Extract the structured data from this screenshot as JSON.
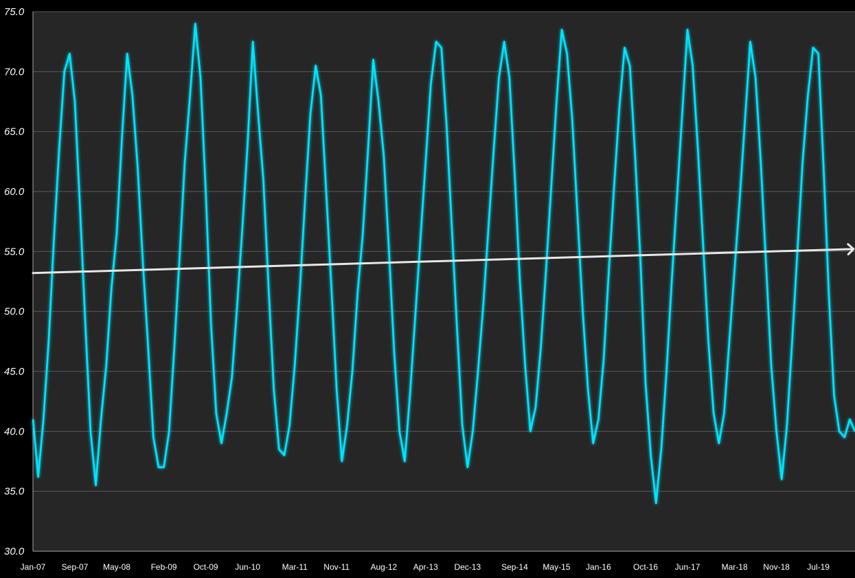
{
  "colors": {
    "background": "#000000",
    "plot_area": "#262626",
    "grid": "#595959",
    "axis": "#a6a6a6",
    "series": "#00e5ff",
    "trend": "#e8e8e8",
    "text": "#ffffff"
  },
  "chart_data": {
    "type": "line",
    "title": "",
    "xlabel": "",
    "ylabel": "",
    "ylim": [
      30,
      75
    ],
    "y_tick_labels": [
      "30.0",
      "35.0",
      "40.0",
      "45.0",
      "50.0",
      "55.0",
      "60.0",
      "65.0",
      "70.0",
      "75.0"
    ],
    "x_start": "2007-01",
    "x_end": "2020-02",
    "x_tick_labels": [
      {
        "date": "2007-01",
        "label": "Jan-07"
      },
      {
        "date": "2007-09",
        "label": "Sep-07"
      },
      {
        "date": "2008-05",
        "label": "May-08"
      },
      {
        "date": "2009-02",
        "label": "Feb-09"
      },
      {
        "date": "2009-10",
        "label": "Oct-09"
      },
      {
        "date": "2010-06",
        "label": "Jun-10"
      },
      {
        "date": "2011-03",
        "label": "Mar-11"
      },
      {
        "date": "2011-11",
        "label": "Nov-11"
      },
      {
        "date": "2012-08",
        "label": "Aug-12"
      },
      {
        "date": "2013-04",
        "label": "Apr-13"
      },
      {
        "date": "2013-12",
        "label": "Dec-13"
      },
      {
        "date": "2014-09",
        "label": "Sep-14"
      },
      {
        "date": "2015-05",
        "label": "May-15"
      },
      {
        "date": "2016-01",
        "label": "Jan-16"
      },
      {
        "date": "2016-10",
        "label": "Oct-16"
      },
      {
        "date": "2017-06",
        "label": "Jun-17"
      },
      {
        "date": "2018-03",
        "label": "Mar-18"
      },
      {
        "date": "2018-11",
        "label": "Nov-18"
      },
      {
        "date": "2019-07",
        "label": "Jul-19"
      }
    ],
    "grid": true,
    "legend": "none",
    "series": [
      {
        "points": [
          [
            "2007-01",
            41.0
          ],
          [
            "2007-02",
            36.2
          ],
          [
            "2007-03",
            41.0
          ],
          [
            "2007-04",
            47.5
          ],
          [
            "2007-05",
            56.0
          ],
          [
            "2007-06",
            63.5
          ],
          [
            "2007-07",
            70.0
          ],
          [
            "2007-08",
            71.5
          ],
          [
            "2007-09",
            67.5
          ],
          [
            "2007-10",
            58.5
          ],
          [
            "2007-11",
            49.0
          ],
          [
            "2007-12",
            40.0
          ],
          [
            "2008-01",
            35.5
          ],
          [
            "2008-02",
            41.0
          ],
          [
            "2008-03",
            45.5
          ],
          [
            "2008-04",
            52.0
          ],
          [
            "2008-05",
            56.5
          ],
          [
            "2008-06",
            64.5
          ],
          [
            "2008-07",
            71.5
          ],
          [
            "2008-08",
            68.0
          ],
          [
            "2008-09",
            62.0
          ],
          [
            "2008-10",
            54.0
          ],
          [
            "2008-11",
            47.0
          ],
          [
            "2008-12",
            39.5
          ],
          [
            "2009-01",
            37.0
          ],
          [
            "2009-02",
            37.0
          ],
          [
            "2009-03",
            40.0
          ],
          [
            "2009-04",
            47.0
          ],
          [
            "2009-05",
            54.5
          ],
          [
            "2009-06",
            62.5
          ],
          [
            "2009-07",
            68.0
          ],
          [
            "2009-08",
            74.0
          ],
          [
            "2009-09",
            69.5
          ],
          [
            "2009-10",
            60.0
          ],
          [
            "2009-11",
            49.0
          ],
          [
            "2009-12",
            41.5
          ],
          [
            "2010-01",
            39.0
          ],
          [
            "2010-02",
            41.5
          ],
          [
            "2010-03",
            44.5
          ],
          [
            "2010-04",
            50.5
          ],
          [
            "2010-05",
            57.0
          ],
          [
            "2010-06",
            64.0
          ],
          [
            "2010-07",
            72.5
          ],
          [
            "2010-08",
            66.5
          ],
          [
            "2010-09",
            61.0
          ],
          [
            "2010-10",
            52.0
          ],
          [
            "2010-11",
            43.5
          ],
          [
            "2010-12",
            38.5
          ],
          [
            "2011-01",
            38.0
          ],
          [
            "2011-02",
            40.5
          ],
          [
            "2011-03",
            45.5
          ],
          [
            "2011-04",
            52.0
          ],
          [
            "2011-05",
            59.5
          ],
          [
            "2011-06",
            66.5
          ],
          [
            "2011-07",
            70.5
          ],
          [
            "2011-08",
            68.0
          ],
          [
            "2011-09",
            60.0
          ],
          [
            "2011-10",
            52.0
          ],
          [
            "2011-11",
            43.5
          ],
          [
            "2011-12",
            37.5
          ],
          [
            "2012-01",
            40.5
          ],
          [
            "2012-02",
            45.0
          ],
          [
            "2012-03",
            51.5
          ],
          [
            "2012-04",
            56.5
          ],
          [
            "2012-05",
            63.5
          ],
          [
            "2012-06",
            71.0
          ],
          [
            "2012-07",
            67.5
          ],
          [
            "2012-08",
            63.0
          ],
          [
            "2012-09",
            55.0
          ],
          [
            "2012-10",
            46.5
          ],
          [
            "2012-11",
            40.0
          ],
          [
            "2012-12",
            37.5
          ],
          [
            "2013-01",
            43.0
          ],
          [
            "2013-02",
            49.5
          ],
          [
            "2013-03",
            56.0
          ],
          [
            "2013-04",
            62.5
          ],
          [
            "2013-05",
            69.0
          ],
          [
            "2013-06",
            72.5
          ],
          [
            "2013-07",
            72.0
          ],
          [
            "2013-08",
            65.5
          ],
          [
            "2013-09",
            57.0
          ],
          [
            "2013-10",
            48.5
          ],
          [
            "2013-11",
            40.5
          ],
          [
            "2013-12",
            37.0
          ],
          [
            "2014-01",
            40.0
          ],
          [
            "2014-02",
            45.0
          ],
          [
            "2014-03",
            50.5
          ],
          [
            "2014-04",
            57.0
          ],
          [
            "2014-05",
            63.5
          ],
          [
            "2014-06",
            69.5
          ],
          [
            "2014-07",
            72.5
          ],
          [
            "2014-08",
            69.5
          ],
          [
            "2014-09",
            61.5
          ],
          [
            "2014-10",
            52.5
          ],
          [
            "2014-11",
            45.5
          ],
          [
            "2014-12",
            40.0
          ],
          [
            "2015-01",
            42.0
          ],
          [
            "2015-02",
            47.0
          ],
          [
            "2015-03",
            53.5
          ],
          [
            "2015-04",
            60.5
          ],
          [
            "2015-05",
            67.5
          ],
          [
            "2015-06",
            73.5
          ],
          [
            "2015-07",
            71.5
          ],
          [
            "2015-08",
            66.0
          ],
          [
            "2015-09",
            58.0
          ],
          [
            "2015-10",
            50.0
          ],
          [
            "2015-11",
            43.5
          ],
          [
            "2015-12",
            39.0
          ],
          [
            "2016-01",
            41.0
          ],
          [
            "2016-02",
            46.0
          ],
          [
            "2016-03",
            53.5
          ],
          [
            "2016-04",
            60.5
          ],
          [
            "2016-05",
            67.0
          ],
          [
            "2016-06",
            72.0
          ],
          [
            "2016-07",
            70.5
          ],
          [
            "2016-08",
            63.0
          ],
          [
            "2016-09",
            54.5
          ],
          [
            "2016-10",
            44.0
          ],
          [
            "2016-11",
            38.0
          ],
          [
            "2016-12",
            34.0
          ],
          [
            "2017-01",
            38.5
          ],
          [
            "2017-02",
            45.0
          ],
          [
            "2017-03",
            52.5
          ],
          [
            "2017-04",
            59.5
          ],
          [
            "2017-05",
            66.5
          ],
          [
            "2017-06",
            73.5
          ],
          [
            "2017-07",
            70.5
          ],
          [
            "2017-08",
            63.5
          ],
          [
            "2017-09",
            55.5
          ],
          [
            "2017-10",
            47.5
          ],
          [
            "2017-11",
            41.5
          ],
          [
            "2017-12",
            39.0
          ],
          [
            "2018-01",
            41.5
          ],
          [
            "2018-02",
            47.5
          ],
          [
            "2018-03",
            53.5
          ],
          [
            "2018-04",
            59.5
          ],
          [
            "2018-05",
            66.0
          ],
          [
            "2018-06",
            72.5
          ],
          [
            "2018-07",
            69.5
          ],
          [
            "2018-08",
            62.5
          ],
          [
            "2018-09",
            54.0
          ],
          [
            "2018-10",
            45.5
          ],
          [
            "2018-11",
            40.0
          ],
          [
            "2018-12",
            36.0
          ],
          [
            "2019-01",
            40.5
          ],
          [
            "2019-02",
            47.5
          ],
          [
            "2019-03",
            55.0
          ],
          [
            "2019-04",
            62.5
          ],
          [
            "2019-05",
            68.0
          ],
          [
            "2019-06",
            72.0
          ],
          [
            "2019-07",
            71.5
          ],
          [
            "2019-08",
            62.0
          ],
          [
            "2019-09",
            51.5
          ],
          [
            "2019-10",
            43.0
          ],
          [
            "2019-11",
            40.0
          ],
          [
            "2019-12",
            39.5
          ],
          [
            "2020-01",
            41.0
          ],
          [
            "2020-02",
            40.0
          ]
        ]
      }
    ],
    "trend": {
      "start": [
        "2007-01",
        53.2
      ],
      "end": [
        "2020-02",
        55.2
      ],
      "arrowhead": true
    }
  }
}
